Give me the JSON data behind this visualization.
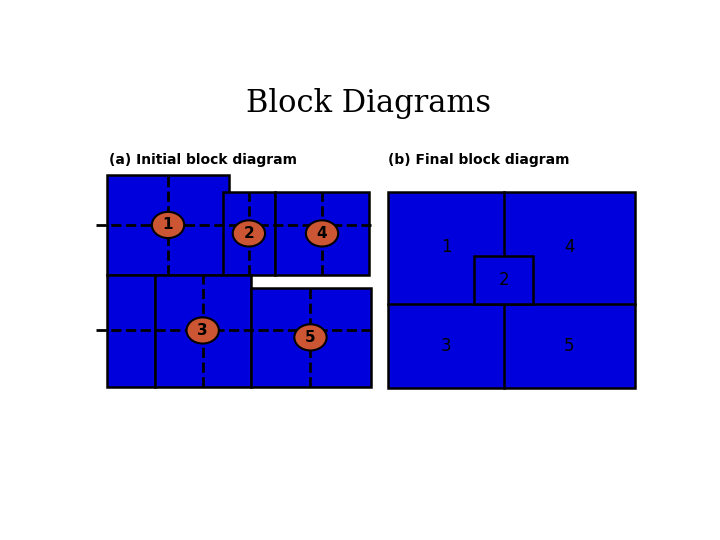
{
  "title": "Block Diagrams",
  "title_fontsize": 22,
  "subtitle_a": "(a) Initial block diagram",
  "subtitle_b": "(b) Final block diagram",
  "subtitle_fontsize": 10,
  "bg_color": "#ffffff",
  "block_color": "#0000dd",
  "block_edge_color": "#000000",
  "circle_color": "#cc5533",
  "circle_edge_color": "#000000",
  "text_color": "#000000",
  "dashed_color": "#000000",
  "label_fontsize": 12,
  "circle_label_fontsize": 11
}
